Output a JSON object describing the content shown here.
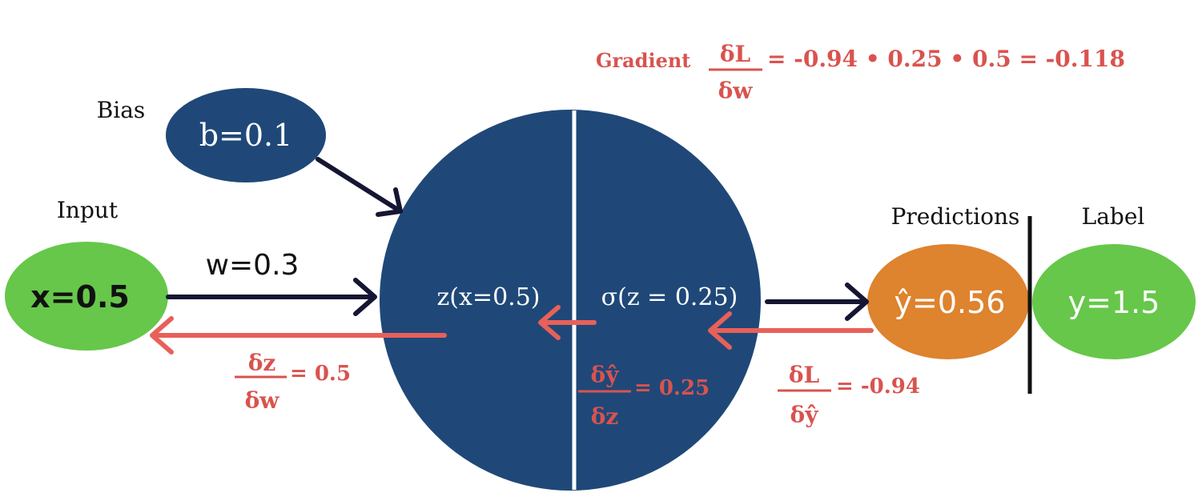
{
  "colors": {
    "neuron": "#1f4878",
    "bias_node": "#1f4878",
    "input_node": "#66c74a",
    "label_node": "#66c74a",
    "prediction_node": "#de832e",
    "forward_arrow": "#151633",
    "backward_arrow": "#e8605a",
    "gradient_text": "#d9534f"
  },
  "labels": {
    "bias": "Bias",
    "input": "Input",
    "predictions": "Predictions",
    "label": "Label"
  },
  "nodes": {
    "bias": "b=0.1",
    "input": "x=0.5",
    "weight": "w=0.3",
    "z": "z(x=0.5)",
    "sigma": "σ(z  =  0.25)",
    "prediction": "ŷ=0.56",
    "target": "y=1.5"
  },
  "gradients": {
    "dz_dw": {
      "num": "δz",
      "den": "δw",
      "value": "= 0.5"
    },
    "dy_dz": {
      "num": "δŷ",
      "den": "δz",
      "value": "= 0.25"
    },
    "dL_dy": {
      "num": "δL",
      "den": "δŷ",
      "value": "= -0.94"
    },
    "total": {
      "label": "Gradient",
      "num": "δL",
      "den": "δw",
      "value": "= -0.94 • 0.25 • 0.5 =  -0.118"
    }
  },
  "icons": [
    "arrow-right-icon",
    "arrow-left-icon"
  ]
}
